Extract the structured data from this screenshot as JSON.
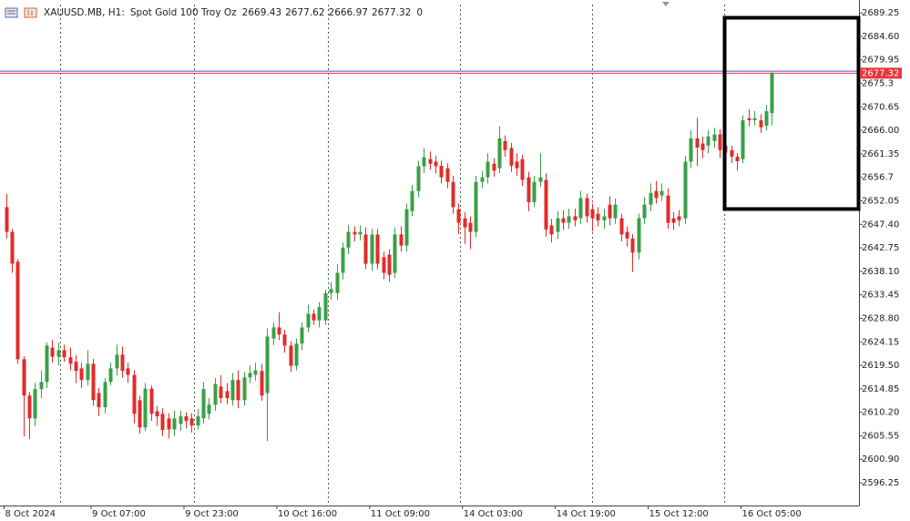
{
  "chart_data": {
    "type": "candlestick",
    "title": "XAUUSD.MB, H1:",
    "subtitle": "Spot Gold 100 Troy Oz",
    "info": [
      2669.43,
      2677.62,
      2666.97,
      2677.32,
      0
    ],
    "up_color": "#3a9f47",
    "down_color": "#e22b2b",
    "bid": 2677.32,
    "bid_color": "#e8343c",
    "ask": 2677.72,
    "ask_color": "#4a55c9",
    "ylim": [
      2591.75,
      2690.9
    ],
    "yticks": [
      2689.25,
      {
        "value": 2684.6,
        "label": "2684.60"
      },
      2679.95,
      2675.3,
      {
        "value": 2670.65,
        "label": "2670.65"
      },
      {
        "value": 2666,
        "label": "2666.00"
      },
      2661.35,
      2656.7,
      2652.05,
      {
        "value": 2647.4,
        "label": "2647.40"
      },
      2642.75,
      {
        "value": 2638.1,
        "label": "2638.10"
      },
      2633.45,
      {
        "value": 2628.8,
        "label": "2628.80"
      },
      2624.15,
      {
        "value": 2619.5,
        "label": "2619.50"
      },
      2614.85,
      {
        "value": 2610.2,
        "label": "2610.20"
      },
      2605.55,
      {
        "value": 2600.9,
        "label": "2600.90"
      },
      2596.25
    ],
    "categories": [
      "8 Oct 2024",
      null,
      null,
      null,
      null,
      null,
      null,
      null,
      null,
      null,
      null,
      null,
      null,
      null,
      null,
      "9 Oct 07:00",
      null,
      null,
      null,
      null,
      null,
      null,
      null,
      null,
      null,
      null,
      null,
      null,
      null,
      null,
      null,
      "9 Oct 23:00",
      null,
      null,
      null,
      null,
      null,
      null,
      null,
      null,
      null,
      null,
      null,
      null,
      null,
      null,
      null,
      "10 Oct 16:00",
      null,
      null,
      null,
      null,
      null,
      null,
      null,
      null,
      null,
      null,
      null,
      null,
      null,
      null,
      null,
      "11 Oct 09:00",
      null,
      null,
      null,
      null,
      null,
      null,
      null,
      null,
      null,
      null,
      null,
      null,
      null,
      null,
      null,
      "14 Oct 03:00",
      null,
      null,
      null,
      null,
      null,
      null,
      null,
      null,
      null,
      null,
      null,
      null,
      null,
      null,
      null,
      "14 Oct 19:00",
      null,
      null,
      null,
      null,
      null,
      null,
      null,
      null,
      null,
      null,
      null,
      null,
      null,
      null,
      null,
      "15 Oct 12:00",
      null,
      null,
      null,
      null,
      null,
      null,
      null,
      null,
      null,
      null,
      null,
      null,
      null,
      null,
      null,
      "16 Oct 05:00",
      null,
      null,
      null,
      null,
      null
    ],
    "open": [
      2650.8,
      2645.9,
      2640.0,
      2620.7,
      2613.5,
      2609.0,
      2614.8,
      2616.2,
      2623.0,
      2621.2,
      2622.5,
      2621.1,
      2620.2,
      2618.9,
      2616.6,
      2619.8,
      2614.0,
      2611.2,
      2616.2,
      2618.9,
      2621.6,
      2618.9,
      2617.6,
      2612.6,
      2607.2,
      2614.9,
      2610.4,
      2609.9,
      2609.0,
      2606.8,
      2607.9,
      2609.4,
      2609.0,
      2607.6,
      2609.0,
      2609.9,
      2611.7,
      2615.3,
      2614.4,
      2612.6,
      2616.6,
      2612.6,
      2617.1,
      2617.6,
      2618.4,
      2614.0,
      2624.8,
      2627.0,
      2625.6,
      2623.4,
      2619.4,
      2623.8,
      2627.0,
      2629.7,
      2628.4,
      2628.4,
      2633.8,
      2633.8,
      2637.8,
      2642.8,
      2645.9,
      2645.4,
      2645.4,
      2639.6,
      2645.4,
      2640.9,
      2641.4,
      2637.8,
      2645.4,
      2643.2,
      2650.0,
      2654.0,
      2658.9,
      2660.3,
      2659.8,
      2659.0,
      2658.5,
      2655.8,
      2650.4,
      2648.6,
      2647.7,
      2645.9,
      2655.8,
      2656.7,
      2659.4,
      2658.5,
      2663.9,
      2662.5,
      2659.8,
      2660.3,
      2656.7,
      2651.8,
      2655.8,
      2656.2,
      2647.2,
      2645.9,
      2648.6,
      2647.7,
      2649.0,
      2648.6,
      2652.6,
      2650.4,
      2649.5,
      2648.2,
      2651.3,
      2648.6,
      2648.6,
      2645.9,
      2644.6,
      2641.8,
      2648.6,
      2651.3,
      2654.0,
      2653.1,
      2653.1,
      2648.6,
      2649.0,
      2648.6,
      2659.8,
      2664.4,
      2663.4,
      2663.0,
      2663.9,
      2665.2,
      2663.0,
      2662.1,
      2660.8,
      2660.3,
      2668.4,
      2668.0,
      2668.0,
      2666.9,
      2669.43
    ],
    "high": [
      2653.4,
      2646.5,
      2640.5,
      2621.3,
      2614.2,
      2616.0,
      2618.5,
      2624.0,
      2624.5,
      2624.0,
      2623.6,
      2623.0,
      2621.5,
      2620.0,
      2622.5,
      2620.8,
      2615.0,
      2617.0,
      2620.0,
      2623.6,
      2623.2,
      2620.0,
      2618.5,
      2613.5,
      2616.0,
      2615.5,
      2611.5,
      2611.0,
      2610.0,
      2610.5,
      2610.5,
      2610.2,
      2610.0,
      2610.8,
      2616.2,
      2613.0,
      2617.0,
      2617.5,
      2616.0,
      2618.0,
      2618.5,
      2618.2,
      2619.5,
      2620.0,
      2619.8,
      2626.8,
      2628.0,
      2630.0,
      2626.5,
      2624.3,
      2624.8,
      2628.0,
      2631.5,
      2630.5,
      2632.0,
      2634.5,
      2636.0,
      2639.5,
      2643.8,
      2647.3,
      2647.0,
      2647.2,
      2646.8,
      2646.5,
      2646.5,
      2642.0,
      2642.5,
      2646.8,
      2647.0,
      2651.5,
      2655.2,
      2660.0,
      2662.5,
      2661.8,
      2661.0,
      2660.0,
      2659.5,
      2657.0,
      2651.5,
      2649.8,
      2649.0,
      2657.0,
      2658.0,
      2661.5,
      2660.5,
      2666.8,
      2665.0,
      2663.5,
      2661.5,
      2661.2,
      2657.8,
      2657.0,
      2661.5,
      2657.5,
      2648.5,
      2650.0,
      2650.2,
      2650.5,
      2650.5,
      2654.0,
      2653.5,
      2651.5,
      2650.8,
      2650.5,
      2653.0,
      2652.5,
      2649.5,
      2647.0,
      2645.5,
      2649.5,
      2652.8,
      2655.5,
      2656.0,
      2655.5,
      2654.5,
      2649.8,
      2650.2,
      2661.0,
      2666.0,
      2668.5,
      2664.8,
      2666.0,
      2666.5,
      2666.2,
      2664.5,
      2663.0,
      2661.5,
      2669.0,
      2670.2,
      2669.8,
      2669.2,
      2671.0,
      2677.62
    ],
    "low": [
      2644.6,
      2637.8,
      2619.8,
      2605.4,
      2604.9,
      2607.5,
      2613.0,
      2615.0,
      2620.0,
      2619.5,
      2620.2,
      2618.5,
      2616.0,
      2615.0,
      2615.5,
      2611.5,
      2609.5,
      2610.0,
      2615.5,
      2617.5,
      2617.0,
      2616.0,
      2608.0,
      2606.0,
      2606.5,
      2608.5,
      2607.5,
      2605.5,
      2605.0,
      2605.5,
      2606.5,
      2607.0,
      2606.2,
      2606.8,
      2608.0,
      2608.8,
      2610.5,
      2612.0,
      2611.8,
      2611.5,
      2611.0,
      2611.5,
      2616.0,
      2616.5,
      2612.5,
      2604.5,
      2623.5,
      2624.5,
      2622.0,
      2618.2,
      2618.5,
      2622.5,
      2626.0,
      2627.5,
      2627.0,
      2627.5,
      2632.5,
      2632.5,
      2636.5,
      2641.5,
      2644.0,
      2644.2,
      2638.5,
      2638.2,
      2638.5,
      2636.5,
      2636.0,
      2636.8,
      2642.0,
      2642.0,
      2649.0,
      2652.8,
      2657.5,
      2658.2,
      2657.5,
      2655.5,
      2654.5,
      2649.5,
      2645.5,
      2643.5,
      2642.5,
      2644.8,
      2654.5,
      2655.5,
      2656.8,
      2657.5,
      2660.8,
      2657.8,
      2657.0,
      2655.0,
      2650.0,
      2650.8,
      2654.8,
      2645.0,
      2643.8,
      2644.5,
      2646.3,
      2646.5,
      2647.0,
      2647.5,
      2647.8,
      2646.0,
      2647.0,
      2646.5,
      2647.2,
      2647.5,
      2644.0,
      2643.0,
      2638.0,
      2640.5,
      2647.5,
      2650.0,
      2651.5,
      2652.0,
      2646.5,
      2646.3,
      2647.0,
      2647.5,
      2658.5,
      2659.0,
      2660.5,
      2661.5,
      2662.5,
      2660.5,
      2660.0,
      2659.5,
      2658.0,
      2659.5,
      2666.8,
      2667.0,
      2665.5,
      2666.0,
      2666.97
    ],
    "close": [
      2645.9,
      2639.6,
      2620.7,
      2613.5,
      2609.0,
      2614.8,
      2616.2,
      2623.4,
      2621.2,
      2622.5,
      2621.1,
      2619.8,
      2618.4,
      2616.6,
      2619.8,
      2612.6,
      2611.2,
      2616.2,
      2618.9,
      2621.6,
      2618.4,
      2617.6,
      2609.9,
      2607.2,
      2614.9,
      2609.9,
      2609.4,
      2606.7,
      2606.8,
      2609.0,
      2609.4,
      2608.5,
      2607.6,
      2609.4,
      2614.8,
      2611.7,
      2615.8,
      2613.0,
      2613.0,
      2616.6,
      2612.6,
      2617.1,
      2618.0,
      2618.5,
      2613.5,
      2625.2,
      2627.0,
      2625.6,
      2623.4,
      2619.4,
      2623.8,
      2627.0,
      2629.7,
      2628.4,
      2631.0,
      2633.8,
      2634.6,
      2637.8,
      2642.8,
      2645.9,
      2645.4,
      2645.9,
      2639.6,
      2645.4,
      2639.6,
      2637.8,
      2637.4,
      2645.4,
      2643.2,
      2650.4,
      2654.0,
      2658.9,
      2660.7,
      2659.4,
      2658.9,
      2656.7,
      2655.8,
      2650.8,
      2647.7,
      2646.8,
      2645.9,
      2655.8,
      2656.7,
      2659.8,
      2658.0,
      2664.4,
      2662.1,
      2659.0,
      2658.5,
      2656.2,
      2651.8,
      2655.8,
      2656.7,
      2646.4,
      2645.4,
      2648.6,
      2647.7,
      2649.0,
      2648.2,
      2652.6,
      2649.0,
      2648.6,
      2648.2,
      2649.0,
      2648.6,
      2651.3,
      2645.4,
      2644.6,
      2641.8,
      2648.6,
      2651.3,
      2653.6,
      2652.6,
      2654.0,
      2647.7,
      2647.7,
      2648.2,
      2659.8,
      2664.4,
      2662.6,
      2662.1,
      2664.8,
      2665.2,
      2662.1,
      2661.6,
      2660.8,
      2659.9,
      2668.0,
      2668.0,
      2668.4,
      2666.6,
      2669.8,
      2677.32
    ]
  }
}
